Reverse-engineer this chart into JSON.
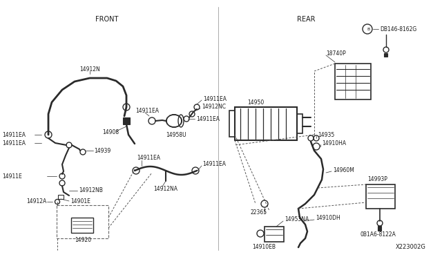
{
  "bg_color": "#ffffff",
  "line_color": "#2a2a2a",
  "text_color": "#1a1a1a",
  "fig_width": 6.4,
  "fig_height": 3.72,
  "diagram_code": "X223002G",
  "front_label": "FRONT",
  "rear_label": "REAR"
}
